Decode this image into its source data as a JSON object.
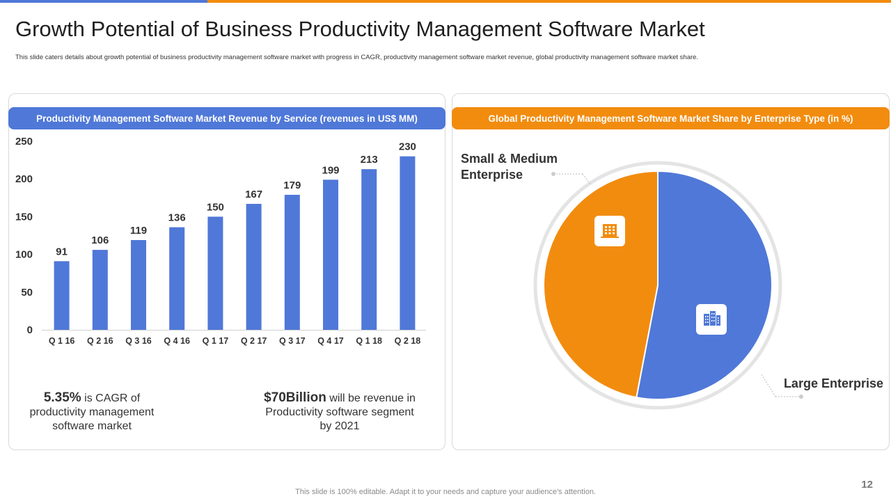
{
  "slide": {
    "title": "Growth Potential of Business Productivity Management Software Market",
    "subtitle": "This slide caters details about growth potential of business productivity management software market with progress in CAGR, productivity management software market revenue, global productivity management software market share.",
    "footer_note": "This slide is 100% editable. Adapt it to your needs and capture your audience's attention.",
    "page_number": "12"
  },
  "colors": {
    "blue": "#4f78d8",
    "orange": "#f28c0f"
  },
  "left_panel": {
    "header": "Productivity Management Software Market Revenue by Service (revenues in US$ MM)",
    "stat_cagr": {
      "value": "5.35%",
      "text": "is CAGR of productivity management software market"
    },
    "stat_revenue": {
      "value": "$70Billion",
      "text": "will be revenue in Productivity software segment by 2021"
    }
  },
  "right_panel": {
    "header": "Global Productivity Management Software Market Share by Enterprise Type (in %)",
    "label_small_medium_line1": "Small & Medium",
    "label_small_medium_line2": "Enterprise",
    "label_large": "Large Enterprise",
    "icon_small_medium": "office-building-icon",
    "icon_large": "corporate-building-icon"
  },
  "chart_data": [
    {
      "type": "bar",
      "title": "Productivity Management Software Market Revenue by Service (revenues in US$ MM)",
      "categories": [
        "Q 1 16",
        "Q 2 16",
        "Q 3 16",
        "Q 4 16",
        "Q 1 17",
        "Q 2 17",
        "Q 3 17",
        "Q 4 17",
        "Q 1 18",
        "Q 2 18"
      ],
      "values": [
        91,
        106,
        119,
        136,
        150,
        167,
        179,
        199,
        213,
        230
      ],
      "yticks": [
        0,
        50,
        100,
        150,
        200,
        250
      ],
      "ylim": [
        0,
        250
      ],
      "xlabel": "",
      "ylabel": "",
      "grid": false,
      "color": "#4f78d8"
    },
    {
      "type": "pie",
      "title": "Global Productivity Management Software Market Share by Enterprise Type (in %)",
      "labels": [
        "Large Enterprise",
        "Small & Medium Enterprise"
      ],
      "values": [
        53,
        47
      ],
      "colors": [
        "#4f78d8",
        "#f28c0f"
      ]
    }
  ]
}
